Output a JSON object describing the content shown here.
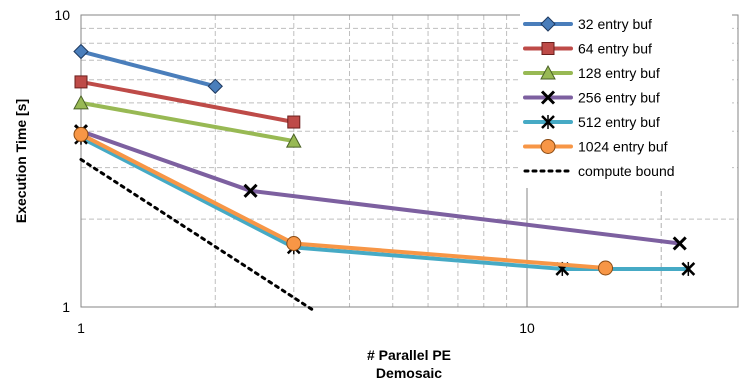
{
  "chart_data": {
    "type": "line",
    "xscale": "log",
    "yscale": "log",
    "xlim": [
      1,
      30
    ],
    "ylim": [
      1,
      10
    ],
    "xticks": [
      "1",
      "10"
    ],
    "yticks": [
      "1",
      "10"
    ],
    "xlabel": "# Parallel PE",
    "xlabel2": "Demosaic",
    "ylabel": "Execution Time [s]",
    "grid": true,
    "legend_position": "top-right",
    "series": [
      {
        "name": "32 entry buf",
        "color": "#4a7ebb",
        "marker": "diamond",
        "x": [
          1,
          2
        ],
        "y": [
          7.5,
          5.7
        ]
      },
      {
        "name": "64 entry buf",
        "color": "#be4b48",
        "marker": "square",
        "x": [
          1,
          3
        ],
        "y": [
          5.9,
          4.3
        ]
      },
      {
        "name": "128 entry buf",
        "color": "#98b954",
        "marker": "triangle",
        "x": [
          1,
          3
        ],
        "y": [
          5.0,
          3.7
        ]
      },
      {
        "name": "256 entry buf",
        "color": "#7d60a0",
        "marker": "x",
        "x": [
          1,
          2.4,
          22
        ],
        "y": [
          4.0,
          2.5,
          1.65
        ]
      },
      {
        "name": "512 entry buf",
        "color": "#46aac5",
        "marker": "star",
        "x": [
          1,
          3,
          12,
          23
        ],
        "y": [
          3.8,
          1.6,
          1.35,
          1.35
        ]
      },
      {
        "name": "1024 entry buf",
        "color": "#f79646",
        "marker": "circle",
        "x": [
          1,
          3,
          15
        ],
        "y": [
          3.9,
          1.65,
          1.36
        ]
      },
      {
        "name": "compute bound",
        "color": "#000000",
        "marker": "none",
        "dashed": true,
        "x": [
          1,
          3.3
        ],
        "y": [
          3.2,
          0.98
        ]
      }
    ]
  }
}
